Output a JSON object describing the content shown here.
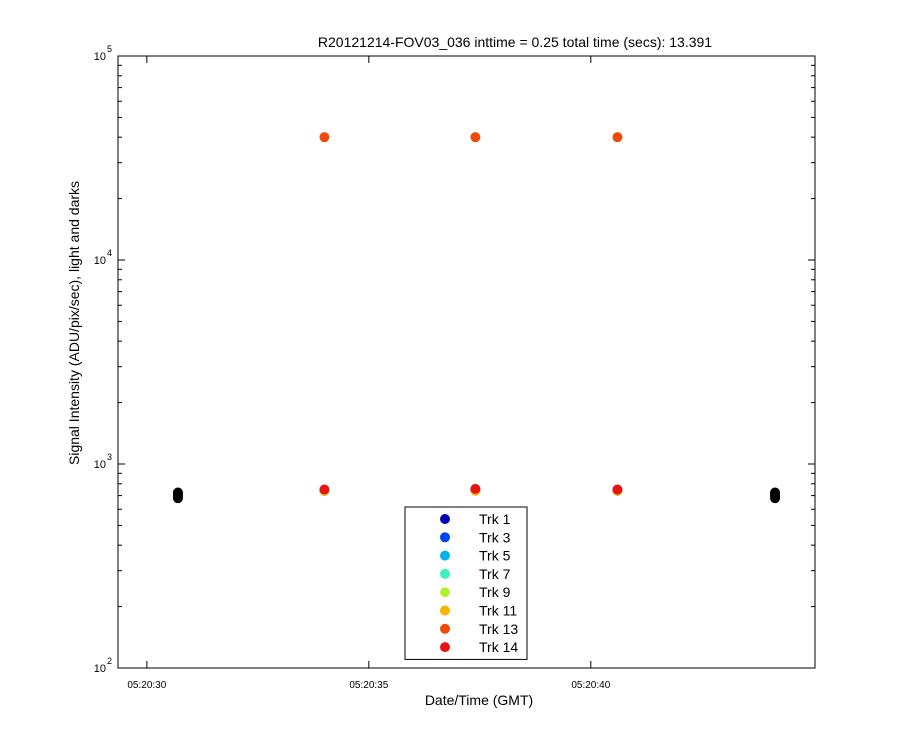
{
  "chart_data": {
    "type": "scatter",
    "title": "R20121214-FOV03_036 inttime = 0.25 total time (secs): 13.391",
    "xlabel": "Date/Time (GMT)",
    "ylabel": "Signal Intensity (ADU/pix/sec), light and darks",
    "y_scale": "log",
    "ylim": [
      100,
      100000
    ],
    "xlim": [
      "05:20:29.35",
      "05:20:45.05"
    ],
    "x_ticks": [
      "05:20:30",
      "05:20:35",
      "05:20:40"
    ],
    "y_ticks": [
      {
        "base": "10",
        "exp": "2",
        "value": 100
      },
      {
        "base": "10",
        "exp": "3",
        "value": 1000
      },
      {
        "base": "10",
        "exp": "4",
        "value": 10000
      },
      {
        "base": "10",
        "exp": "5",
        "value": 100000
      }
    ],
    "legend_position": "bottom-center",
    "series": [
      {
        "name": "Trk 1",
        "color": "#0000b4",
        "points": [
          {
            "x": "05:20:34",
            "y": 740
          },
          {
            "x": "05:20:37.4",
            "y": 745
          },
          {
            "x": "05:20:40.6",
            "y": 740
          }
        ]
      },
      {
        "name": "Trk 3",
        "color": "#0046f0",
        "points": [
          {
            "x": "05:20:34",
            "y": 740
          },
          {
            "x": "05:20:37.4",
            "y": 745
          },
          {
            "x": "05:20:40.6",
            "y": 740
          }
        ]
      },
      {
        "name": "Trk 5",
        "color": "#00b4ee",
        "points": [
          {
            "x": "05:20:34",
            "y": 740
          },
          {
            "x": "05:20:37.4",
            "y": 745
          },
          {
            "x": "05:20:40.6",
            "y": 740
          }
        ]
      },
      {
        "name": "Trk 7",
        "color": "#3cf0c0",
        "points": [
          {
            "x": "05:20:34",
            "y": 740
          },
          {
            "x": "05:20:37.4",
            "y": 745
          },
          {
            "x": "05:20:40.6",
            "y": 740
          }
        ]
      },
      {
        "name": "Trk 9",
        "color": "#b4f032",
        "points": [
          {
            "x": "05:20:34",
            "y": 740
          },
          {
            "x": "05:20:37.4",
            "y": 745
          },
          {
            "x": "05:20:40.6",
            "y": 740
          }
        ]
      },
      {
        "name": "Trk 11",
        "color": "#f8b400",
        "points": [
          {
            "x": "05:20:34",
            "y": 740
          },
          {
            "x": "05:20:37.4",
            "y": 740
          },
          {
            "x": "05:20:40.6",
            "y": 740
          }
        ]
      },
      {
        "name": "Trk 13",
        "color": "#f04a0a",
        "points": [
          {
            "x": "05:20:34",
            "y": 40000
          },
          {
            "x": "05:20:37.4",
            "y": 40000
          },
          {
            "x": "05:20:40.6",
            "y": 40000
          }
        ]
      },
      {
        "name": "Trk 14",
        "color": "#e61414",
        "points": [
          {
            "x": "05:20:34",
            "y": 750
          },
          {
            "x": "05:20:37.4",
            "y": 755
          },
          {
            "x": "05:20:40.6",
            "y": 750
          }
        ]
      }
    ],
    "darks": {
      "color": "#000000",
      "points": [
        {
          "x": "05:20:30.7",
          "y": 680
        },
        {
          "x": "05:20:30.7",
          "y": 695
        },
        {
          "x": "05:20:30.7",
          "y": 710
        },
        {
          "x": "05:20:30.7",
          "y": 725
        },
        {
          "x": "05:20:44.15",
          "y": 680
        },
        {
          "x": "05:20:44.15",
          "y": 695
        },
        {
          "x": "05:20:44.15",
          "y": 710
        },
        {
          "x": "05:20:44.15",
          "y": 725
        }
      ]
    }
  }
}
